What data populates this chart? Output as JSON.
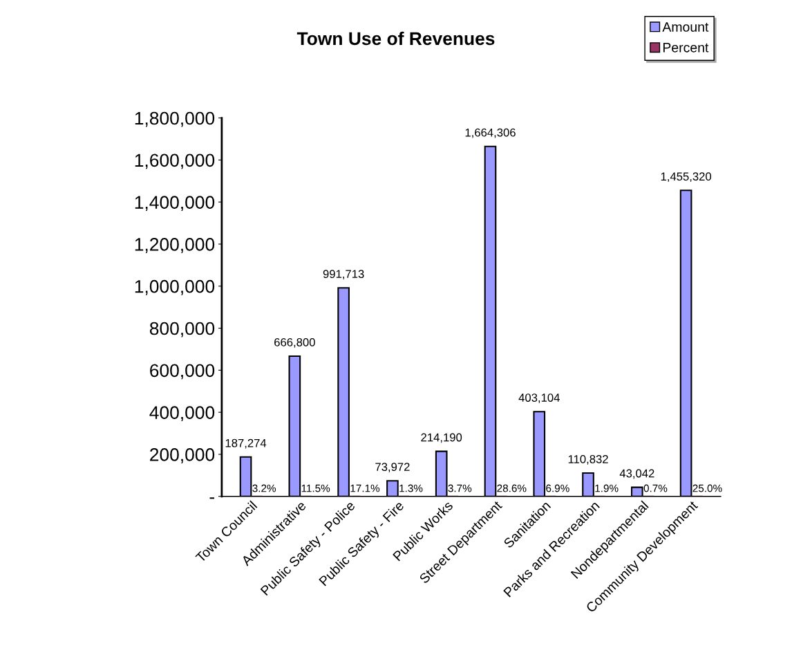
{
  "chart_data": {
    "type": "bar",
    "title": "Town Use of Revenues",
    "categories": [
      "Town Council",
      "Administrative",
      "Public Safety - Police",
      "Public Safety - Fire",
      "Public Works",
      "Street Department",
      "Sanitation",
      "Parks and Recreation",
      "Nondepartmental",
      "Community Development"
    ],
    "series": [
      {
        "name": "Amount",
        "color": "#9999ff",
        "values": [
          187274,
          666800,
          991713,
          73972,
          214190,
          1664306,
          403104,
          110832,
          43042,
          1455320
        ],
        "value_labels": [
          "187,274",
          "666,800",
          "991,713",
          "73,972",
          "214,190",
          "1,664,306",
          "403,104",
          "110,832",
          "43,042",
          "1,455,320"
        ]
      },
      {
        "name": "Percent",
        "color": "#993366",
        "values": [
          3.2,
          11.5,
          17.1,
          1.3,
          3.7,
          28.6,
          6.9,
          1.9,
          0.7,
          25.0
        ],
        "value_labels": [
          "3.2%",
          "11.5%",
          "17.1%",
          "1.3%",
          "3.7%",
          "28.6%",
          "6.9%",
          "1.9%",
          "0.7%",
          "25.0%"
        ]
      }
    ],
    "ylim": [
      0,
      1800000
    ],
    "yticks": [
      {
        "value": 0,
        "label": "-"
      },
      {
        "value": 200000,
        "label": "200,000"
      },
      {
        "value": 400000,
        "label": "400,000"
      },
      {
        "value": 600000,
        "label": "600,000"
      },
      {
        "value": 800000,
        "label": "800,000"
      },
      {
        "value": 1000000,
        "label": "1,000,000"
      },
      {
        "value": 1200000,
        "label": "1,200,000"
      },
      {
        "value": 1400000,
        "label": "1,400,000"
      },
      {
        "value": 1600000,
        "label": "1,600,000"
      },
      {
        "value": 1800000,
        "label": "1,800,000"
      }
    ],
    "grid": false,
    "legend": "top right"
  }
}
